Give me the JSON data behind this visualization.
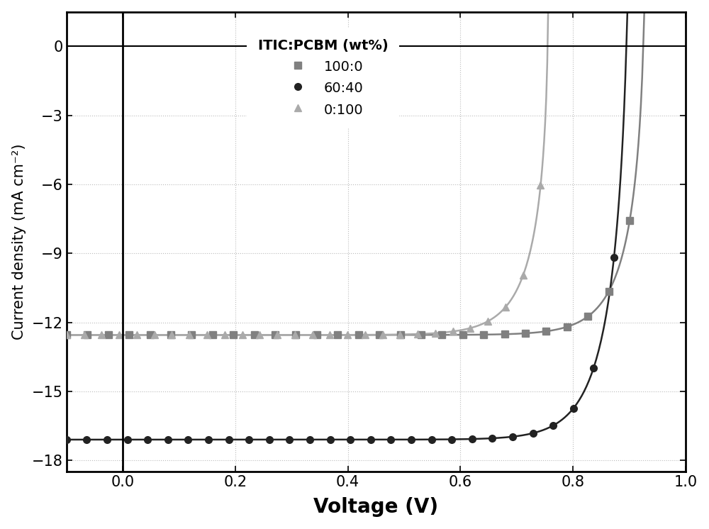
{
  "xlabel": "Voltage (V)",
  "ylabel": "Current density (mA cm⁻²)",
  "xlim": [
    -0.1,
    1.0
  ],
  "ylim": [
    -18.5,
    1.5
  ],
  "xticks": [
    0.0,
    0.2,
    0.4,
    0.6,
    0.8,
    1.0
  ],
  "yticks": [
    0,
    -3,
    -6,
    -9,
    -12,
    -15,
    -18
  ],
  "legend_title": "ITIC:PCBM (wt%)",
  "series": [
    {
      "label": "100:0",
      "color": "#808080",
      "marker": "s",
      "markersize": 7,
      "linewidth": 1.8,
      "jsc": -12.55,
      "voc": 0.925,
      "ff": 0.62,
      "rs": 2.5,
      "rsh": 800
    },
    {
      "label": "60:40",
      "color": "#222222",
      "marker": "o",
      "markersize": 7,
      "linewidth": 1.8,
      "jsc": -17.1,
      "voc": 0.895,
      "ff": 0.68,
      "rs": 1.5,
      "rsh": 2000
    },
    {
      "label": "0:100",
      "color": "#aaaaaa",
      "marker": "^",
      "markersize": 7,
      "linewidth": 1.8,
      "jsc": -12.55,
      "voc": 0.755,
      "ff": 0.45,
      "rs": 3.0,
      "rsh": 300
    }
  ],
  "background_color": "#ffffff",
  "dot_color": "#bbbbbb",
  "xlabel_fontsize": 20,
  "ylabel_fontsize": 15,
  "tick_fontsize": 15,
  "legend_fontsize": 14,
  "legend_title_fontsize": 14,
  "n_markers": 30
}
